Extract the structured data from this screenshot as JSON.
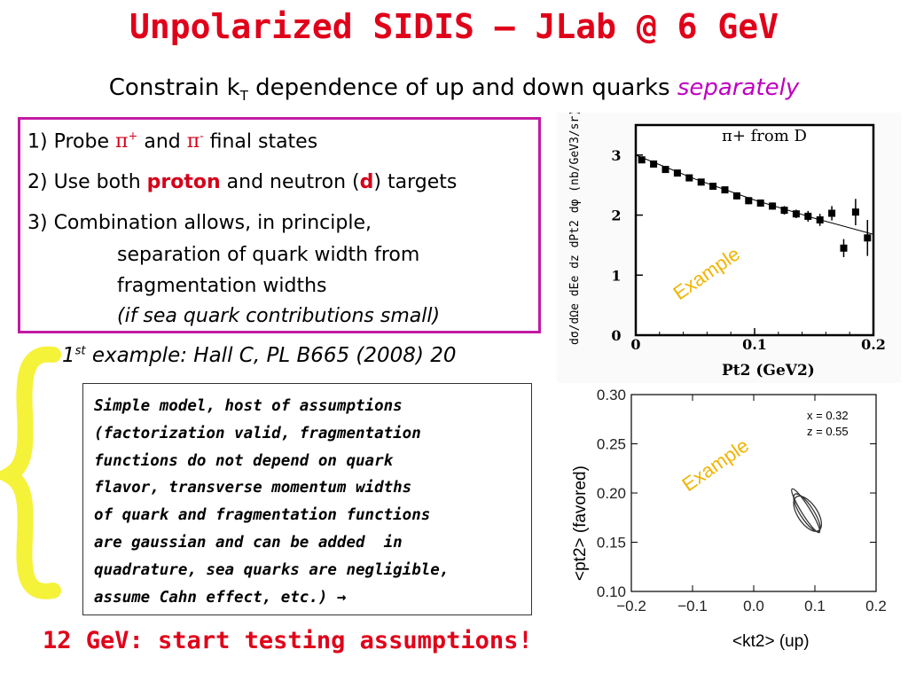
{
  "slide": {
    "title": "Unpolarized SIDIS – JLab @ 6 GeV",
    "subtitle_pre": "Constrain k",
    "subtitle_sub": "T",
    "subtitle_mid": " dependence of up and down quarks ",
    "subtitle_emph": "separately",
    "items": {
      "i1_pre": "1) Probe ",
      "i1_pi": "π",
      "i1_plus": "+",
      "i1_and": " and ",
      "i1_minus": "-",
      "i1_post": " final states",
      "i2_pre": "2) Use both ",
      "i2_proton": "proton",
      "i2_mid": " and neutron (",
      "i2_d": "d",
      "i2_post": ") targets",
      "i3_l1": "3) Combination allows, in principle,",
      "i3_l2": "separation of quark width from",
      "i3_l3": "fragmentation widths",
      "i3_l4": "(if sea quark contributions small)"
    },
    "example_num": "1",
    "example_sup": "st",
    "example_rest": " example: Hall C, PL B665 (2008) 20",
    "model_lines": [
      "Simple model, host of assumptions",
      "(factorization valid, fragmentation",
      "functions do not depend on quark",
      "flavor, transverse momentum widths",
      "of quark and fragmentation functions",
      "are gaussian and can be added  in",
      "quadrature, sea quarks are negligible,",
      "assume Cahn effect, etc.) →"
    ],
    "bottom": "12 GeV: start testing assumptions!"
  },
  "colors": {
    "title_red": "#e0001a",
    "frame_magenta": "#c21aa3",
    "emph_magenta": "#c000c0",
    "brace_yellow": "#f5f23a",
    "example_orange": "#f0b400"
  },
  "chart_data": [
    {
      "type": "scatter",
      "title": "π+ from D",
      "xlabel": "Pt2 (GeV2)",
      "ylabel": "dσ/dΩe dEe dz dPt2 dφ (nb/GeV3/sr)",
      "annotation": "Example",
      "xlim": [
        0,
        0.2
      ],
      "ylim": [
        0,
        3.5
      ],
      "xticks": [
        "0",
        "0.1",
        "0.2"
      ],
      "yticks": [
        "0",
        "1",
        "2",
        "3"
      ],
      "points": [
        {
          "x": 0.005,
          "y": 2.92,
          "err": 0.05
        },
        {
          "x": 0.015,
          "y": 2.85,
          "err": 0.05
        },
        {
          "x": 0.025,
          "y": 2.76,
          "err": 0.05
        },
        {
          "x": 0.035,
          "y": 2.7,
          "err": 0.05
        },
        {
          "x": 0.045,
          "y": 2.62,
          "err": 0.05
        },
        {
          "x": 0.055,
          "y": 2.55,
          "err": 0.05
        },
        {
          "x": 0.065,
          "y": 2.48,
          "err": 0.05
        },
        {
          "x": 0.075,
          "y": 2.42,
          "err": 0.05
        },
        {
          "x": 0.085,
          "y": 2.32,
          "err": 0.06
        },
        {
          "x": 0.095,
          "y": 2.24,
          "err": 0.06
        },
        {
          "x": 0.105,
          "y": 2.2,
          "err": 0.06
        },
        {
          "x": 0.115,
          "y": 2.15,
          "err": 0.06
        },
        {
          "x": 0.125,
          "y": 2.08,
          "err": 0.07
        },
        {
          "x": 0.135,
          "y": 2.02,
          "err": 0.07
        },
        {
          "x": 0.145,
          "y": 1.98,
          "err": 0.09
        },
        {
          "x": 0.155,
          "y": 1.92,
          "err": 0.1
        },
        {
          "x": 0.165,
          "y": 2.03,
          "err": 0.12
        },
        {
          "x": 0.175,
          "y": 1.45,
          "err": 0.15
        },
        {
          "x": 0.185,
          "y": 2.05,
          "err": 0.22
        },
        {
          "x": 0.195,
          "y": 1.62,
          "err": 0.3
        }
      ],
      "fit_curve": [
        {
          "x": 0.0,
          "y": 3.0
        },
        {
          "x": 0.05,
          "y": 2.6
        },
        {
          "x": 0.1,
          "y": 2.25
        },
        {
          "x": 0.15,
          "y": 1.95
        },
        {
          "x": 0.2,
          "y": 1.68
        }
      ]
    },
    {
      "type": "contour",
      "xlabel": "<kt2> (up)",
      "ylabel": "<pt2> (favored)",
      "annotation": "Example",
      "legend_text": [
        "x = 0.32",
        "z = 0.55"
      ],
      "xlim": [
        -0.2,
        0.2
      ],
      "ylim": [
        0.1,
        0.3
      ],
      "xticks": [
        "−0.2",
        "−0.1",
        "0.0",
        "0.1",
        "0.2"
      ],
      "yticks": [
        "0.10",
        "0.15",
        "0.20",
        "0.25",
        "0.30"
      ],
      "ellipses": [
        {
          "cx": 0.085,
          "cy": 0.182,
          "rx": 0.042,
          "ry": 0.007,
          "angle_deg": -58
        },
        {
          "cx": 0.087,
          "cy": 0.18,
          "rx": 0.036,
          "ry": 0.011,
          "angle_deg": -57
        },
        {
          "cx": 0.088,
          "cy": 0.179,
          "rx": 0.033,
          "ry": 0.016,
          "angle_deg": -56
        }
      ]
    }
  ]
}
